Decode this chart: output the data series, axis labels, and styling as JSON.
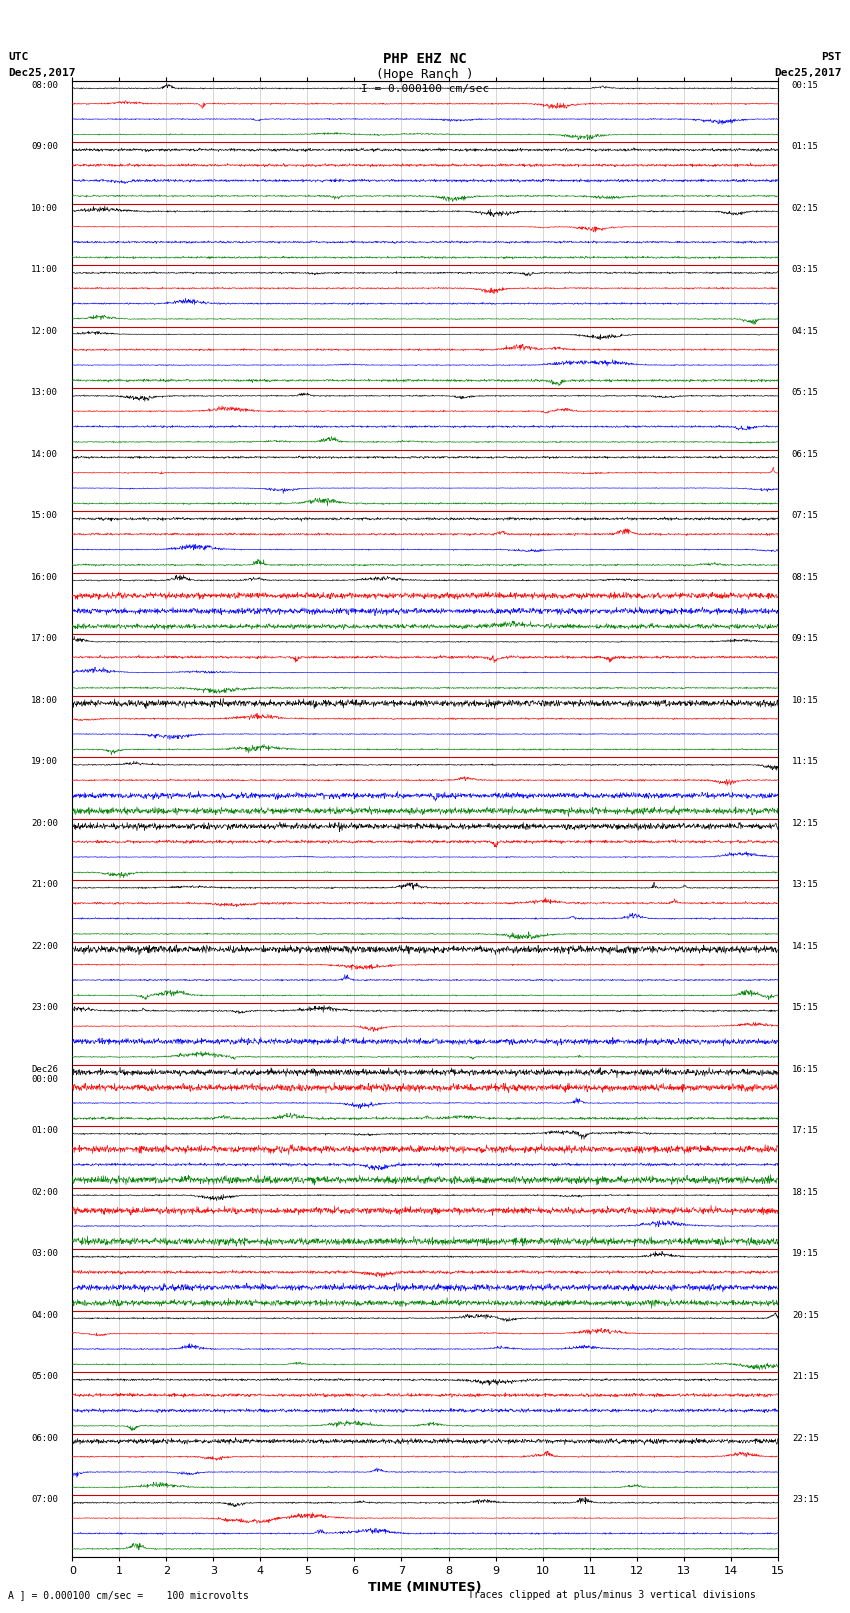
{
  "title_line1": "PHP EHZ NC",
  "title_line2": "(Hope Ranch )",
  "title_line3": "I = 0.000100 cm/sec",
  "left_header_line1": "UTC",
  "left_header_line2": "Dec25,2017",
  "right_header_line1": "PST",
  "right_header_line2": "Dec25,2017",
  "xlabel": "TIME (MINUTES)",
  "footer_left": "= 0.000100 cm/sec =    100 microvolts",
  "footer_right": "Traces clipped at plus/minus 3 vertical divisions",
  "footer_scale_letter": "A",
  "xlim": [
    0,
    15
  ],
  "xticks": [
    0,
    1,
    2,
    3,
    4,
    5,
    6,
    7,
    8,
    9,
    10,
    11,
    12,
    13,
    14,
    15
  ],
  "background_color": "#ffffff",
  "trace_colors": [
    "black",
    "red",
    "blue",
    "green"
  ],
  "separator_color": "#cc0000",
  "num_hour_blocks": 24,
  "traces_per_block": 4,
  "utc_labels": [
    "08:00",
    "09:00",
    "10:00",
    "11:00",
    "12:00",
    "13:00",
    "14:00",
    "15:00",
    "16:00",
    "17:00",
    "18:00",
    "19:00",
    "20:00",
    "21:00",
    "22:00",
    "23:00",
    "Dec26\n00:00",
    "01:00",
    "02:00",
    "03:00",
    "04:00",
    "05:00",
    "06:00",
    "07:00"
  ],
  "pst_labels": [
    "00:15",
    "01:15",
    "02:15",
    "03:15",
    "04:15",
    "05:15",
    "06:15",
    "07:15",
    "08:15",
    "09:15",
    "10:15",
    "11:15",
    "12:15",
    "13:15",
    "14:15",
    "15:15",
    "16:15",
    "17:15",
    "18:15",
    "19:15",
    "20:15",
    "21:15",
    "22:15",
    "23:15"
  ]
}
